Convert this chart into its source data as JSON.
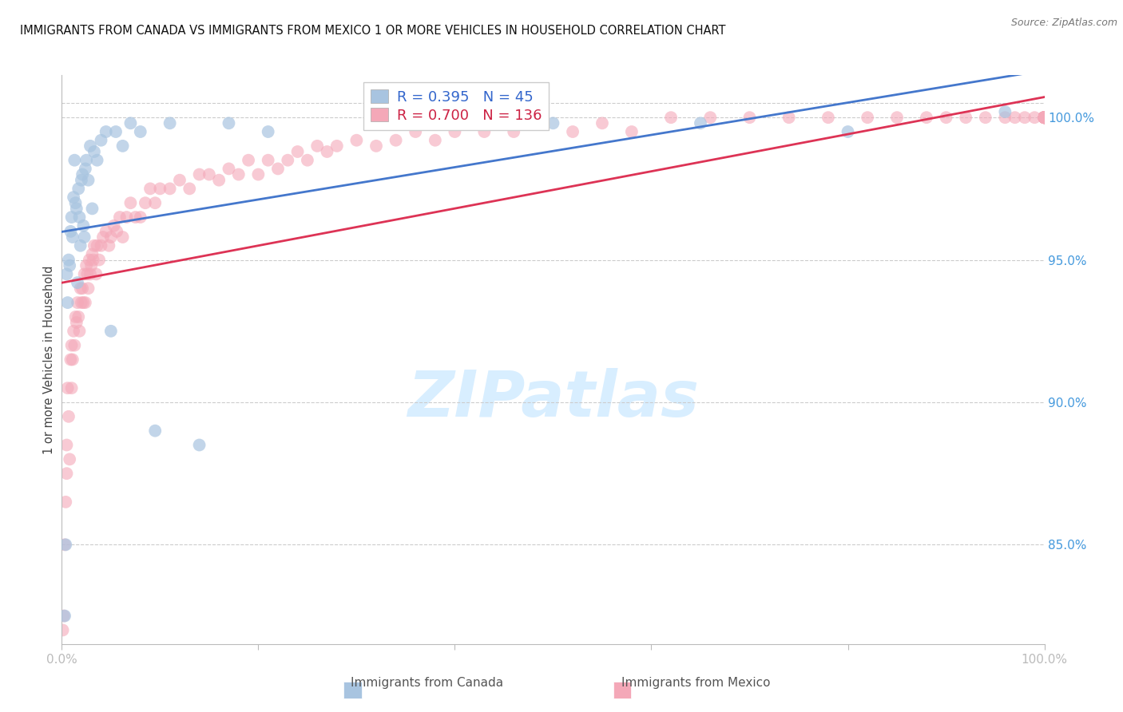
{
  "title": "IMMIGRANTS FROM CANADA VS IMMIGRANTS FROM MEXICO 1 OR MORE VEHICLES IN HOUSEHOLD CORRELATION CHART",
  "source": "Source: ZipAtlas.com",
  "ylabel": "1 or more Vehicles in Household",
  "ylabel_right_vals": [
    85.0,
    90.0,
    95.0,
    100.0
  ],
  "blue_color": "#A8C4E0",
  "pink_color": "#F4A8B8",
  "blue_line_color": "#4477CC",
  "pink_line_color": "#DD3355",
  "watermark_color": "#D8EEFF",
  "background_color": "#FFFFFF",
  "grid_color": "#CCCCCC",
  "xlim": [
    0.0,
    100.0
  ],
  "ylim": [
    81.5,
    101.5
  ],
  "canada_x": [
    0.3,
    0.4,
    0.5,
    0.6,
    0.7,
    0.8,
    0.9,
    1.0,
    1.1,
    1.2,
    1.3,
    1.4,
    1.5,
    1.6,
    1.7,
    1.8,
    1.9,
    2.0,
    2.1,
    2.2,
    2.3,
    2.4,
    2.5,
    2.7,
    2.9,
    3.1,
    3.3,
    3.6,
    4.0,
    4.5,
    5.0,
    5.5,
    6.2,
    7.0,
    8.0,
    9.5,
    11.0,
    14.0,
    17.0,
    21.0,
    34.0,
    50.0,
    65.0,
    80.0,
    96.0
  ],
  "canada_y": [
    82.5,
    85.0,
    94.5,
    93.5,
    95.0,
    94.8,
    96.0,
    96.5,
    95.8,
    97.2,
    98.5,
    97.0,
    96.8,
    94.2,
    97.5,
    96.5,
    95.5,
    97.8,
    98.0,
    96.2,
    95.8,
    98.2,
    98.5,
    97.8,
    99.0,
    96.8,
    98.8,
    98.5,
    99.2,
    99.5,
    92.5,
    99.5,
    99.0,
    99.8,
    99.5,
    89.0,
    99.8,
    88.5,
    99.8,
    99.5,
    99.8,
    99.8,
    99.8,
    99.5,
    100.2
  ],
  "mexico_x": [
    0.1,
    0.2,
    0.3,
    0.4,
    0.5,
    0.5,
    0.6,
    0.7,
    0.8,
    0.9,
    1.0,
    1.0,
    1.1,
    1.2,
    1.3,
    1.4,
    1.5,
    1.6,
    1.7,
    1.8,
    1.9,
    2.0,
    2.1,
    2.2,
    2.3,
    2.4,
    2.5,
    2.6,
    2.7,
    2.8,
    2.9,
    3.0,
    3.1,
    3.2,
    3.3,
    3.5,
    3.6,
    3.8,
    4.0,
    4.2,
    4.5,
    4.8,
    5.0,
    5.3,
    5.6,
    5.9,
    6.2,
    6.6,
    7.0,
    7.5,
    8.0,
    8.5,
    9.0,
    9.5,
    10.0,
    11.0,
    12.0,
    13.0,
    14.0,
    15.0,
    16.0,
    17.0,
    18.0,
    19.0,
    20.0,
    21.0,
    22.0,
    23.0,
    24.0,
    25.0,
    26.0,
    27.0,
    28.0,
    30.0,
    32.0,
    34.0,
    36.0,
    38.0,
    40.0,
    43.0,
    46.0,
    49.0,
    52.0,
    55.0,
    58.0,
    62.0,
    66.0,
    70.0,
    74.0,
    78.0,
    82.0,
    85.0,
    88.0,
    90.0,
    92.0,
    94.0,
    96.0,
    97.0,
    98.0,
    99.0,
    100.0,
    100.0,
    100.0,
    100.0,
    100.0,
    100.0,
    100.0,
    100.0,
    100.0,
    100.0,
    100.0,
    100.0,
    100.0,
    100.0,
    100.0,
    100.0,
    100.0,
    100.0,
    100.0,
    100.0,
    100.0,
    100.0,
    100.0,
    100.0,
    100.0,
    100.0,
    100.0,
    100.0,
    100.0,
    100.0,
    100.0,
    100.0,
    100.0,
    100.0,
    100.0,
    100.0
  ],
  "mexico_y": [
    82.0,
    82.5,
    85.0,
    86.5,
    87.5,
    88.5,
    90.5,
    89.5,
    88.0,
    91.5,
    90.5,
    92.0,
    91.5,
    92.5,
    92.0,
    93.0,
    92.8,
    93.5,
    93.0,
    92.5,
    94.0,
    93.5,
    94.0,
    93.5,
    94.5,
    93.5,
    94.8,
    94.5,
    94.0,
    95.0,
    94.5,
    94.8,
    95.2,
    95.0,
    95.5,
    94.5,
    95.5,
    95.0,
    95.5,
    95.8,
    96.0,
    95.5,
    95.8,
    96.2,
    96.0,
    96.5,
    95.8,
    96.5,
    97.0,
    96.5,
    96.5,
    97.0,
    97.5,
    97.0,
    97.5,
    97.5,
    97.8,
    97.5,
    98.0,
    98.0,
    97.8,
    98.2,
    98.0,
    98.5,
    98.0,
    98.5,
    98.2,
    98.5,
    98.8,
    98.5,
    99.0,
    98.8,
    99.0,
    99.2,
    99.0,
    99.2,
    99.5,
    99.2,
    99.5,
    99.5,
    99.5,
    99.8,
    99.5,
    99.8,
    99.5,
    100.0,
    100.0,
    100.0,
    100.0,
    100.0,
    100.0,
    100.0,
    100.0,
    100.0,
    100.0,
    100.0,
    100.0,
    100.0,
    100.0,
    100.0,
    100.0,
    100.0,
    100.0,
    100.0,
    100.0,
    100.0,
    100.0,
    100.0,
    100.0,
    100.0,
    100.0,
    100.0,
    100.0,
    100.0,
    100.0,
    100.0,
    100.0,
    100.0,
    100.0,
    100.0,
    100.0,
    100.0,
    100.0,
    100.0,
    100.0,
    100.0,
    100.0,
    100.0,
    100.0,
    100.0,
    100.0,
    100.0,
    100.0,
    100.0,
    100.0,
    100.0
  ]
}
